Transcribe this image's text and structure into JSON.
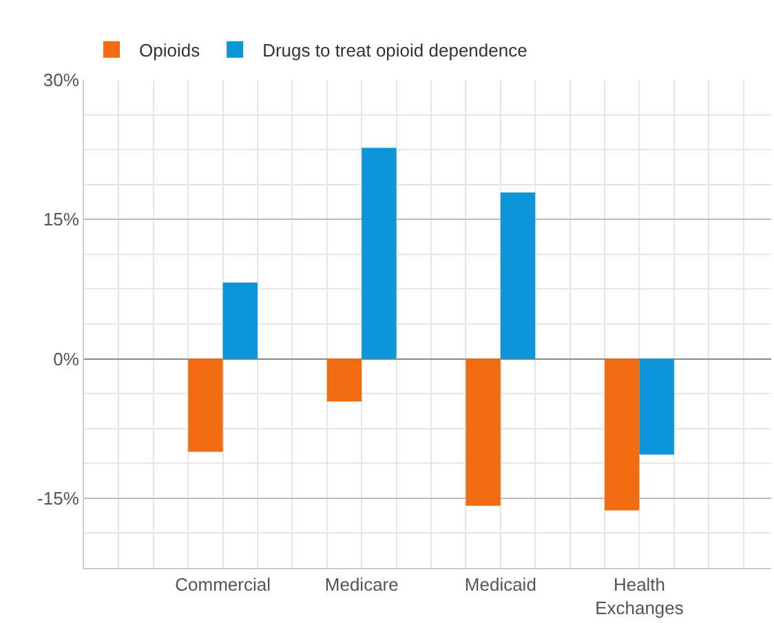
{
  "chart_data": {
    "type": "bar",
    "categories": [
      "Commercial",
      "Medicare",
      "Medicaid",
      "Health\nExchanges"
    ],
    "series": [
      {
        "name": "Opioids",
        "color": "#f26b0f",
        "values": [
          -10.0,
          -4.6,
          -15.8,
          -16.3
        ]
      },
      {
        "name": "Drugs to treat opioid dependence",
        "color": "#0a96d8",
        "values": [
          8.2,
          22.7,
          17.9,
          -10.3
        ]
      }
    ],
    "ylim": [
      -22.5,
      30
    ],
    "yticks": [
      {
        "value": -15,
        "label": "-15%"
      },
      {
        "value": 0,
        "label": "0%"
      },
      {
        "value": 15,
        "label": "15%"
      },
      {
        "value": 30,
        "label": "30%"
      }
    ],
    "grid": true,
    "legend": "top left"
  }
}
